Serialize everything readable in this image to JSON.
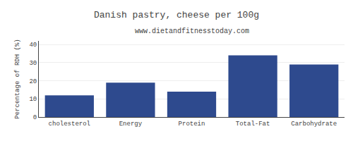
{
  "chart_data": {
    "type": "bar",
    "title": "Danish pastry, cheese per 100g",
    "subtitle": "www.dietandfitnesstoday.com",
    "categories": [
      "cholesterol",
      "Energy",
      "Protein",
      "Total-Fat",
      "Carbohydrate"
    ],
    "values": [
      12,
      19,
      14,
      34,
      29
    ],
    "color": "#2e4a8e",
    "ylabel": "Percentage of RDH (%)",
    "ylim": [
      0,
      42
    ],
    "yticks": [
      0,
      10,
      20,
      30,
      40
    ],
    "grid": true
  }
}
